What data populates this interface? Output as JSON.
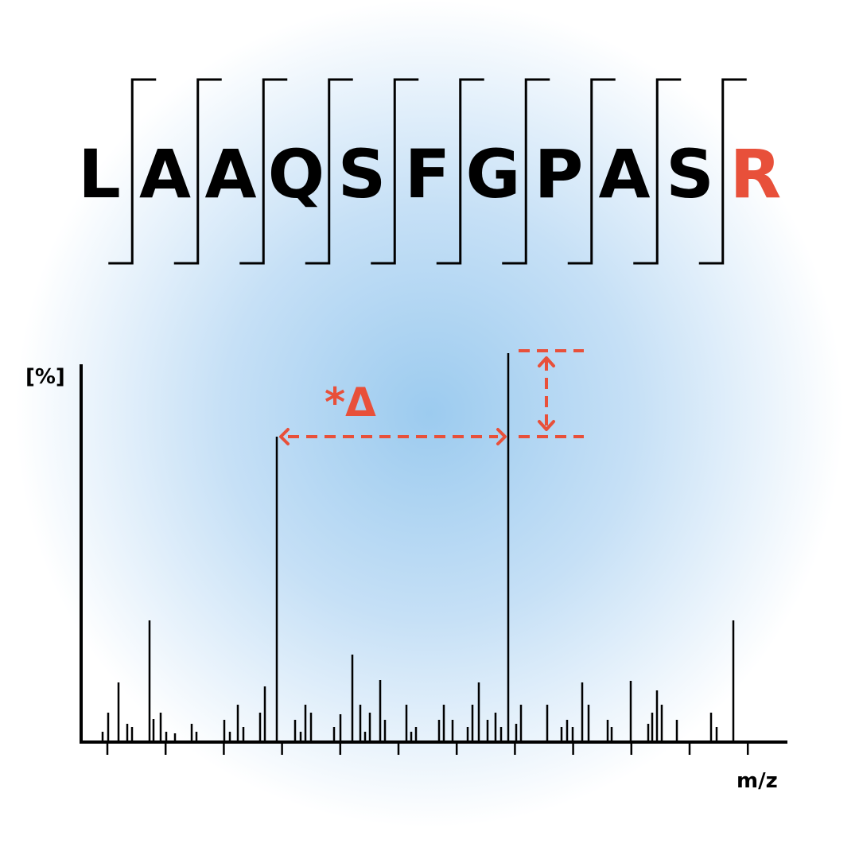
{
  "sequence": [
    "L",
    "A",
    "A",
    "Q",
    "S",
    "F",
    "G",
    "P",
    "A",
    "S",
    "R"
  ],
  "y_axis_label": "[%]",
  "x_axis_label": "m/z",
  "delta_label": "*Δ"
}
